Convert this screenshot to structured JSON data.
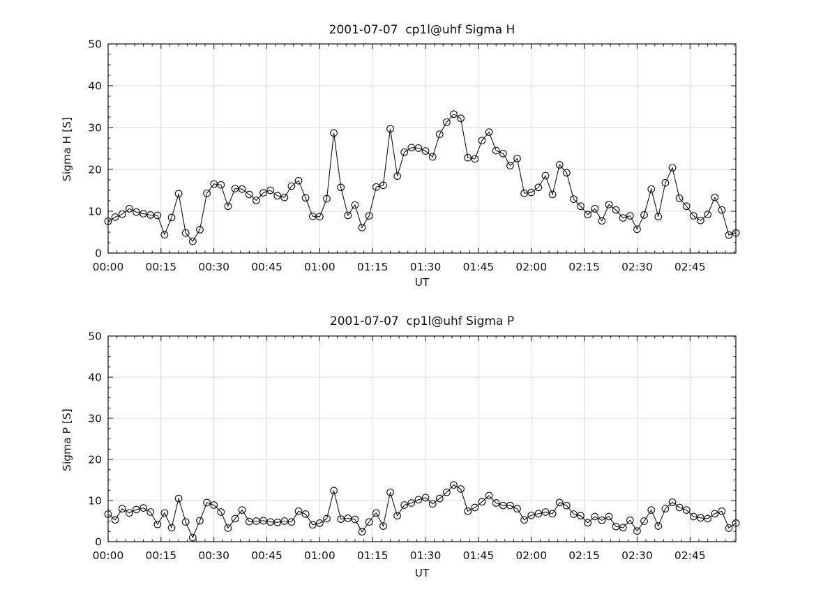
{
  "figure": {
    "background_color": "#ffffff",
    "axis_color": "#222222",
    "grid_color": "#d8d8d8",
    "line_color": "#111111",
    "text_color": "#111111"
  },
  "chart_data": [
    {
      "type": "line",
      "title": "2001-07-07  cp1l@uhf Sigma H",
      "xlabel": "UT",
      "ylabel": "Sigma H [S]",
      "marker": "open-circle",
      "legend": "none",
      "grid": "on",
      "xlim_minutes": [
        0,
        178
      ],
      "ylim": [
        0,
        50
      ],
      "yticks": [
        0,
        10,
        20,
        30,
        40,
        50
      ],
      "xticks": {
        "positions_minutes": [
          0,
          15,
          30,
          45,
          60,
          75,
          90,
          105,
          120,
          135,
          150,
          165
        ],
        "labels": [
          "00:00",
          "00:15",
          "00:30",
          "00:45",
          "01:00",
          "01:15",
          "01:30",
          "01:45",
          "02:00",
          "02:15",
          "02:30",
          "02:45"
        ]
      },
      "minor_tick_step_x_minutes": 2.5,
      "minor_tick_step_y": 2.5,
      "x_minutes": [
        0,
        2,
        4,
        6,
        8,
        10,
        12,
        14,
        16,
        18,
        20,
        22,
        24,
        26,
        28,
        30,
        32,
        34,
        36,
        38,
        40,
        42,
        44,
        46,
        48,
        50,
        52,
        54,
        56,
        58,
        60,
        62,
        64,
        66,
        68,
        70,
        72,
        74,
        76,
        78,
        80,
        82,
        84,
        86,
        88,
        90,
        92,
        94,
        96,
        98,
        100,
        102,
        104,
        106,
        108,
        110,
        112,
        114,
        116,
        118,
        120,
        122,
        124,
        126,
        128,
        130,
        132,
        134,
        136,
        138,
        140,
        142,
        144,
        146,
        148,
        150,
        152,
        154,
        156,
        158,
        160,
        162,
        164,
        166,
        168,
        170,
        172,
        174,
        176,
        178
      ],
      "values": [
        7.6,
        8.6,
        9.3,
        10.6,
        9.8,
        9.4,
        9.1,
        9.0,
        4.4,
        8.5,
        14.2,
        4.8,
        2.8,
        5.6,
        14.3,
        16.5,
        16.3,
        11.2,
        15.4,
        15.3,
        14.0,
        12.6,
        14.4,
        15.0,
        13.7,
        13.3,
        16.0,
        17.3,
        13.2,
        8.8,
        8.7,
        13.0,
        28.7,
        15.7,
        9.0,
        11.5,
        6.1,
        8.9,
        15.8,
        16.2,
        29.7,
        18.4,
        24.1,
        25.2,
        25.1,
        24.4,
        23.0,
        28.4,
        31.3,
        33.2,
        32.2,
        22.8,
        22.5,
        26.9,
        28.9,
        24.5,
        23.8,
        20.9,
        22.6,
        14.3,
        14.5,
        15.7,
        18.5,
        14.0,
        21.1,
        19.2,
        12.9,
        11.2,
        9.2,
        10.6,
        7.7,
        11.6,
        10.3,
        8.4,
        8.9,
        5.7,
        9.1,
        15.3,
        8.7,
        16.8,
        20.4,
        13.1,
        11.2,
        8.9,
        7.8,
        9.2,
        13.3,
        10.3,
        4.3,
        4.8
      ]
    },
    {
      "type": "line",
      "title": "2001-07-07  cp1l@uhf Sigma P",
      "xlabel": "UT",
      "ylabel": "Sigma P [S]",
      "marker": "open-circle",
      "legend": "none",
      "grid": "on",
      "xlim_minutes": [
        0,
        178
      ],
      "ylim": [
        0,
        50
      ],
      "yticks": [
        0,
        10,
        20,
        30,
        40,
        50
      ],
      "xticks": {
        "positions_minutes": [
          0,
          15,
          30,
          45,
          60,
          75,
          90,
          105,
          120,
          135,
          150,
          165
        ],
        "labels": [
          "00:00",
          "00:15",
          "00:30",
          "00:45",
          "01:00",
          "01:15",
          "01:30",
          "01:45",
          "02:00",
          "02:15",
          "02:30",
          "02:45"
        ]
      },
      "minor_tick_step_x_minutes": 2.5,
      "minor_tick_step_y": 2.5,
      "x_minutes": [
        0,
        2,
        4,
        6,
        8,
        10,
        12,
        14,
        16,
        18,
        20,
        22,
        24,
        26,
        28,
        30,
        32,
        34,
        36,
        38,
        40,
        42,
        44,
        46,
        48,
        50,
        52,
        54,
        56,
        58,
        60,
        62,
        64,
        66,
        68,
        70,
        72,
        74,
        76,
        78,
        80,
        82,
        84,
        86,
        88,
        90,
        92,
        94,
        96,
        98,
        100,
        102,
        104,
        106,
        108,
        110,
        112,
        114,
        116,
        118,
        120,
        122,
        124,
        126,
        128,
        130,
        132,
        134,
        136,
        138,
        140,
        142,
        144,
        146,
        148,
        150,
        152,
        154,
        156,
        158,
        160,
        162,
        164,
        166,
        168,
        170,
        172,
        174,
        176,
        178
      ],
      "values": [
        6.7,
        5.3,
        8.0,
        7.0,
        7.8,
        8.2,
        7.2,
        4.2,
        7.0,
        3.4,
        10.5,
        4.8,
        1.0,
        5.1,
        9.5,
        8.9,
        7.2,
        3.3,
        5.6,
        7.7,
        4.9,
        5.0,
        5.1,
        4.8,
        4.7,
        5.0,
        4.8,
        7.4,
        6.7,
        4.1,
        4.5,
        5.6,
        12.4,
        5.5,
        5.7,
        5.4,
        2.4,
        4.8,
        7.0,
        3.8,
        12.0,
        6.3,
        8.9,
        9.4,
        10.2,
        10.7,
        9.2,
        10.5,
        12.0,
        13.8,
        12.8,
        7.4,
        8.3,
        9.7,
        11.2,
        9.4,
        8.8,
        8.8,
        8.0,
        5.3,
        6.4,
        6.8,
        7.2,
        6.8,
        9.5,
        8.8,
        6.7,
        6.3,
        4.6,
        6.1,
        5.2,
        6.1,
        3.7,
        3.4,
        5.2,
        2.6,
        5.0,
        7.7,
        3.8,
        8.0,
        9.6,
        8.3,
        7.7,
        6.1,
        5.8,
        5.6,
        6.8,
        7.4,
        3.3,
        4.5
      ]
    }
  ]
}
